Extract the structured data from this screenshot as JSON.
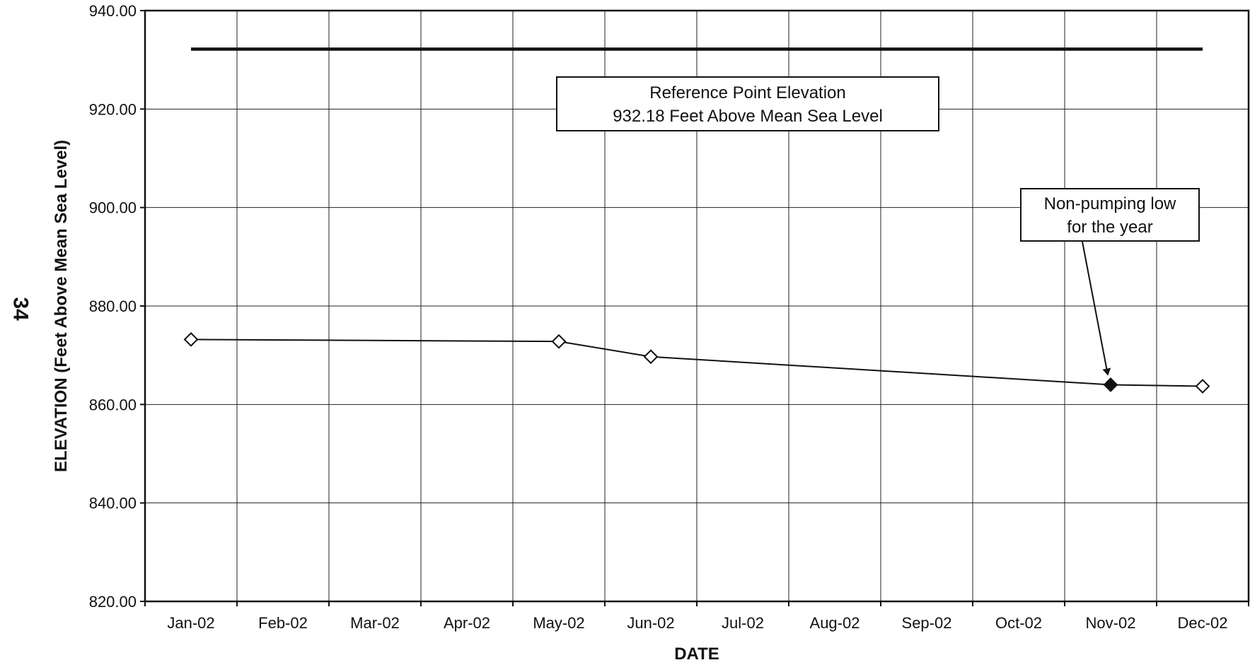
{
  "page_number": "34",
  "chart_data": {
    "type": "line",
    "title": "",
    "xlabel": "DATE",
    "ylabel": "ELEVATION (Feet Above Mean Sea Level)",
    "ylim": [
      820,
      940
    ],
    "y_ticks": [
      "820.00",
      "840.00",
      "860.00",
      "880.00",
      "900.00",
      "920.00",
      "940.00"
    ],
    "categories": [
      "Jan-02",
      "Feb-02",
      "Mar-02",
      "Apr-02",
      "May-02",
      "Jun-02",
      "Jul-02",
      "Aug-02",
      "Sep-02",
      "Oct-02",
      "Nov-02",
      "Dec-02"
    ],
    "grid": true,
    "reference_line": {
      "value": 932.18,
      "label_line1": "Reference Point Elevation",
      "label_line2": "932.18 Feet Above Mean Sea Level"
    },
    "series": [
      {
        "points": [
          {
            "x": "Jan-02",
            "y": 873.2,
            "marker": "open-diamond"
          },
          {
            "x": "May-02",
            "y": 872.8,
            "marker": "open-diamond"
          },
          {
            "x": "Jun-02",
            "y": 869.7,
            "marker": "open-diamond"
          },
          {
            "x": "Nov-02",
            "y": 864.0,
            "marker": "filled-diamond"
          },
          {
            "x": "Dec-02",
            "y": 863.7,
            "marker": "open-diamond"
          }
        ]
      }
    ],
    "annotations": [
      {
        "text_line1": "Non-pumping low",
        "text_line2": "for the year",
        "target": "Nov-02"
      }
    ]
  }
}
